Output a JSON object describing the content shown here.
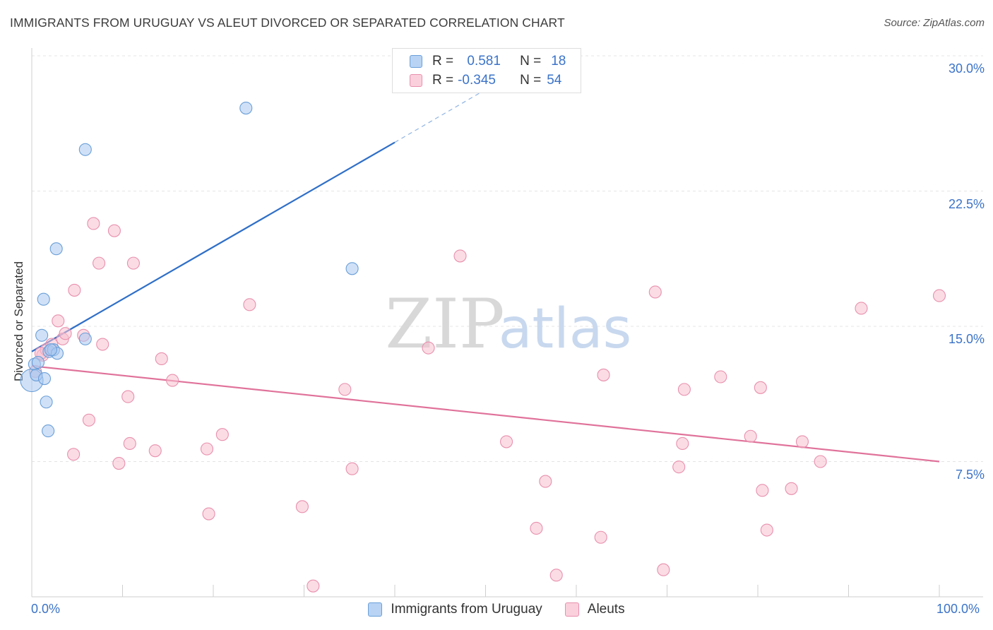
{
  "title": "IMMIGRANTS FROM URUGUAY VS ALEUT DIVORCED OR SEPARATED CORRELATION CHART",
  "source": "Source: ZipAtlas.com",
  "watermark": {
    "zip": "ZIP",
    "atlas": "atlas"
  },
  "legend": {
    "rows": [
      {
        "r_label": "R =",
        "r_value": " 0.581",
        "n_label": "N =",
        "n_value": "18"
      },
      {
        "r_label": "R =",
        "r_value": "-0.345",
        "n_label": "N =",
        "n_value": "54"
      }
    ]
  },
  "chart_data": {
    "type": "scatter",
    "title": "IMMIGRANTS FROM URUGUAY VS ALEUT DIVORCED OR SEPARATED CORRELATION CHART",
    "xlabel": "",
    "ylabel": "Divorced or Separated",
    "xlim": [
      0,
      105
    ],
    "ylim": [
      0,
      31
    ],
    "x_tick_labels": [
      "0.0%",
      "100.0%"
    ],
    "y_ticks": [
      7.5,
      15.0,
      22.5,
      30.0
    ],
    "y_tick_labels": [
      "7.5%",
      "15.0%",
      "22.5%",
      "30.0%"
    ],
    "grid": true,
    "legend_position": "bottom-center",
    "colors": {
      "blue_fill": "#a9c8f0",
      "blue_stroke": "#6b9fd8",
      "blue_line": "#2f6fc7",
      "pink_fill": "#f7bfd0",
      "pink_stroke": "#e890ad",
      "pink_line": "#e0729a",
      "grid": "#e4e4e4",
      "axis_text": "#3b73c8"
    },
    "series": [
      {
        "name": "Immigrants from Uruguay",
        "color": "blue",
        "points": [
          {
            "x": 0.0,
            "y": 12.0,
            "big": true
          },
          {
            "x": 0.3,
            "y": 12.9
          },
          {
            "x": 0.5,
            "y": 12.3
          },
          {
            "x": 0.7,
            "y": 13.0
          },
          {
            "x": 1.1,
            "y": 14.5
          },
          {
            "x": 1.3,
            "y": 16.5
          },
          {
            "x": 1.4,
            "y": 12.1
          },
          {
            "x": 1.6,
            "y": 10.8
          },
          {
            "x": 1.8,
            "y": 9.2
          },
          {
            "x": 1.9,
            "y": 13.6
          },
          {
            "x": 2.4,
            "y": 13.7
          },
          {
            "x": 2.8,
            "y": 13.5
          },
          {
            "x": 2.7,
            "y": 19.3
          },
          {
            "x": 5.9,
            "y": 14.3
          },
          {
            "x": 5.9,
            "y": 24.8
          },
          {
            "x": 23.6,
            "y": 27.1
          },
          {
            "x": 35.3,
            "y": 18.2
          },
          {
            "x": 2.1,
            "y": 13.7
          }
        ],
        "trend": {
          "x0": 0,
          "y0": 13.6,
          "x1": 40,
          "y1": 25.2,
          "x_dash_end": 53,
          "y_dash_end": 29.0
        }
      },
      {
        "name": "Aleuts",
        "color": "pink",
        "points": [
          {
            "x": 0.4,
            "y": 12.5
          },
          {
            "x": 1.2,
            "y": 13.4
          },
          {
            "x": 1.6,
            "y": 13.7
          },
          {
            "x": 2.2,
            "y": 14.0
          },
          {
            "x": 2.9,
            "y": 15.3
          },
          {
            "x": 3.4,
            "y": 14.3
          },
          {
            "x": 3.7,
            "y": 14.6
          },
          {
            "x": 4.6,
            "y": 7.9
          },
          {
            "x": 4.7,
            "y": 17.0
          },
          {
            "x": 5.7,
            "y": 14.5
          },
          {
            "x": 6.3,
            "y": 9.8
          },
          {
            "x": 6.8,
            "y": 20.7
          },
          {
            "x": 7.4,
            "y": 18.5
          },
          {
            "x": 7.8,
            "y": 14.0
          },
          {
            "x": 9.1,
            "y": 20.3
          },
          {
            "x": 9.6,
            "y": 7.4
          },
          {
            "x": 10.6,
            "y": 11.1
          },
          {
            "x": 10.8,
            "y": 8.5
          },
          {
            "x": 11.2,
            "y": 18.5
          },
          {
            "x": 13.6,
            "y": 8.1
          },
          {
            "x": 14.3,
            "y": 13.2
          },
          {
            "x": 15.5,
            "y": 12.0
          },
          {
            "x": 19.3,
            "y": 8.2
          },
          {
            "x": 19.5,
            "y": 4.6
          },
          {
            "x": 21.0,
            "y": 9.0
          },
          {
            "x": 24.0,
            "y": 16.2
          },
          {
            "x": 29.8,
            "y": 5.0
          },
          {
            "x": 31.0,
            "y": 0.6
          },
          {
            "x": 34.5,
            "y": 11.5
          },
          {
            "x": 35.3,
            "y": 7.1
          },
          {
            "x": 43.7,
            "y": 13.8
          },
          {
            "x": 47.2,
            "y": 18.9
          },
          {
            "x": 52.3,
            "y": 8.6
          },
          {
            "x": 55.6,
            "y": 3.8
          },
          {
            "x": 56.6,
            "y": 6.4
          },
          {
            "x": 57.8,
            "y": 1.2
          },
          {
            "x": 62.7,
            "y": 3.3
          },
          {
            "x": 63.0,
            "y": 12.3
          },
          {
            "x": 68.7,
            "y": 16.9
          },
          {
            "x": 69.6,
            "y": 1.5
          },
          {
            "x": 71.3,
            "y": 7.2
          },
          {
            "x": 71.7,
            "y": 8.5
          },
          {
            "x": 71.9,
            "y": 11.5
          },
          {
            "x": 75.9,
            "y": 12.2
          },
          {
            "x": 79.2,
            "y": 8.9
          },
          {
            "x": 80.3,
            "y": 11.6
          },
          {
            "x": 80.5,
            "y": 5.9
          },
          {
            "x": 81.0,
            "y": 3.7
          },
          {
            "x": 83.7,
            "y": 6.0
          },
          {
            "x": 84.9,
            "y": 8.6
          },
          {
            "x": 86.9,
            "y": 7.5
          },
          {
            "x": 91.4,
            "y": 16.0
          },
          {
            "x": 100.0,
            "y": 16.7
          },
          {
            "x": 1.0,
            "y": 13.5
          }
        ],
        "trend": {
          "x0": 0,
          "y0": 12.8,
          "x1": 100,
          "y1": 7.5
        }
      }
    ]
  },
  "bottom_legend": [
    "Immigrants from Uruguay",
    "Aleuts"
  ]
}
